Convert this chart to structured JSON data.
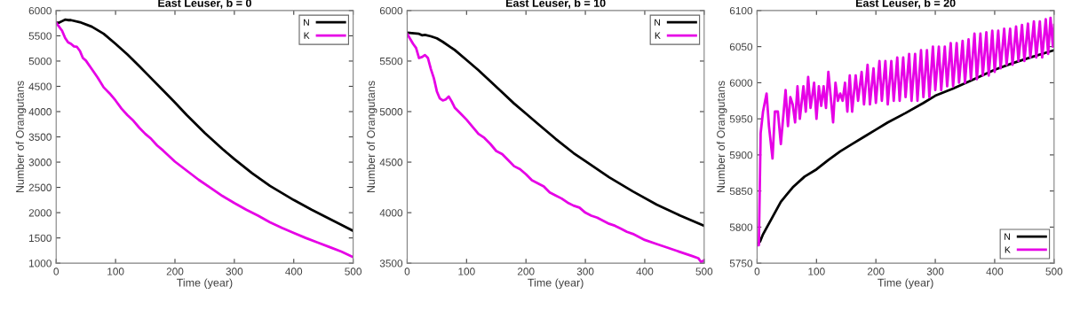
{
  "chart_data": [
    {
      "type": "line",
      "title": "East Leuser, b = 0",
      "xlabel": "Time (year)",
      "ylabel": "Number of Orangutans",
      "xlim": [
        0,
        500
      ],
      "ylim": [
        1000,
        6000
      ],
      "xticks": [
        0,
        100,
        200,
        300,
        400,
        500
      ],
      "yticks": [
        1000,
        1500,
        2000,
        2500,
        3000,
        3500,
        4000,
        4500,
        5000,
        5500,
        6000
      ],
      "grid": false,
      "legend": "top right",
      "series": [
        {
          "name": "N",
          "color": "#000000",
          "x": [
            0,
            5,
            10,
            15,
            20,
            25,
            40,
            60,
            80,
            100,
            120,
            140,
            160,
            180,
            200,
            220,
            250,
            280,
            300,
            330,
            360,
            400,
            430,
            460,
            500
          ],
          "values": [
            5760,
            5760,
            5790,
            5820,
            5810,
            5810,
            5770,
            5680,
            5540,
            5340,
            5130,
            4900,
            4660,
            4420,
            4180,
            3930,
            3580,
            3260,
            3060,
            2780,
            2530,
            2250,
            2060,
            1880,
            1640
          ]
        },
        {
          "name": "K",
          "color": "#e600e6",
          "x": [
            0,
            10,
            15,
            20,
            25,
            30,
            35,
            40,
            45,
            50,
            60,
            70,
            80,
            90,
            100,
            110,
            120,
            130,
            140,
            150,
            160,
            170,
            180,
            190,
            200,
            220,
            240,
            260,
            280,
            300,
            320,
            340,
            360,
            380,
            400,
            420,
            440,
            460,
            480,
            500
          ],
          "values": [
            5760,
            5600,
            5460,
            5370,
            5340,
            5290,
            5280,
            5200,
            5060,
            5010,
            4840,
            4670,
            4480,
            4360,
            4220,
            4060,
            3930,
            3820,
            3680,
            3560,
            3460,
            3330,
            3230,
            3120,
            3010,
            2830,
            2650,
            2490,
            2330,
            2190,
            2060,
            1940,
            1810,
            1700,
            1600,
            1500,
            1410,
            1320,
            1230,
            1120
          ]
        }
      ]
    },
    {
      "type": "line",
      "title": "East Leuser, b = 10",
      "xlabel": "Time (year)",
      "ylabel": "Number of Orangutans",
      "xlim": [
        0,
        500
      ],
      "ylim": [
        3500,
        6000
      ],
      "xticks": [
        0,
        100,
        200,
        300,
        400,
        500
      ],
      "yticks": [
        3500,
        4000,
        4500,
        5000,
        5500,
        6000
      ],
      "grid": false,
      "legend": "top right",
      "series": [
        {
          "name": "N",
          "color": "#000000",
          "x": [
            0,
            20,
            25,
            30,
            40,
            50,
            60,
            80,
            100,
            120,
            140,
            160,
            180,
            200,
            220,
            250,
            280,
            300,
            340,
            380,
            420,
            460,
            500
          ],
          "values": [
            5780,
            5770,
            5755,
            5760,
            5745,
            5725,
            5690,
            5610,
            5510,
            5410,
            5300,
            5190,
            5080,
            4980,
            4880,
            4730,
            4590,
            4510,
            4350,
            4210,
            4080,
            3970,
            3870
          ]
        },
        {
          "name": "K",
          "color": "#e600e6",
          "x": [
            0,
            10,
            15,
            20,
            25,
            30,
            35,
            40,
            45,
            50,
            55,
            60,
            65,
            70,
            75,
            80,
            90,
            100,
            110,
            120,
            130,
            140,
            150,
            160,
            170,
            180,
            190,
            200,
            210,
            220,
            230,
            240,
            250,
            260,
            270,
            280,
            290,
            300,
            310,
            320,
            330,
            340,
            350,
            360,
            370,
            380,
            390,
            400,
            420,
            440,
            460,
            480,
            490,
            495,
            500
          ],
          "values": [
            5770,
            5670,
            5630,
            5530,
            5540,
            5560,
            5530,
            5420,
            5330,
            5200,
            5130,
            5110,
            5120,
            5150,
            5100,
            5040,
            4980,
            4920,
            4850,
            4780,
            4740,
            4680,
            4610,
            4580,
            4520,
            4460,
            4430,
            4380,
            4320,
            4290,
            4260,
            4200,
            4170,
            4140,
            4100,
            4070,
            4050,
            4000,
            3970,
            3950,
            3920,
            3890,
            3870,
            3840,
            3810,
            3790,
            3760,
            3730,
            3690,
            3650,
            3610,
            3570,
            3550,
            3510,
            3530
          ]
        }
      ]
    },
    {
      "type": "line",
      "title": "East Leuser, b = 20",
      "xlabel": "Time (year)",
      "ylabel": "Number of Orangutans",
      "xlim": [
        0,
        500
      ],
      "ylim": [
        5750,
        6100
      ],
      "xticks": [
        0,
        100,
        200,
        300,
        400,
        500
      ],
      "yticks": [
        5750,
        5800,
        5850,
        5900,
        5950,
        6000,
        6050,
        6100
      ],
      "grid": false,
      "legend": "bottom right",
      "series": [
        {
          "name": "N",
          "color": "#000000",
          "x": [
            0,
            5,
            10,
            20,
            30,
            40,
            50,
            60,
            80,
            100,
            120,
            140,
            160,
            180,
            200,
            220,
            250,
            280,
            300,
            330,
            360,
            400,
            430,
            460,
            500
          ],
          "values": [
            5775,
            5780,
            5790,
            5805,
            5820,
            5835,
            5845,
            5855,
            5870,
            5880,
            5893,
            5905,
            5915,
            5925,
            5935,
            5945,
            5958,
            5972,
            5982,
            5992,
            6003,
            6018,
            6027,
            6035,
            6045
          ]
        },
        {
          "name": "K",
          "color": "#e600e6",
          "x": [
            0,
            3,
            6,
            10,
            16,
            20,
            26,
            30,
            35,
            40,
            48,
            52,
            56,
            60,
            64,
            68,
            72,
            78,
            82,
            86,
            90,
            96,
            100,
            104,
            108,
            112,
            116,
            120,
            124,
            128,
            132,
            136,
            140,
            144,
            148,
            152,
            156,
            160,
            166,
            170,
            176,
            180,
            186,
            190,
            196,
            200,
            206,
            210,
            216,
            220,
            226,
            230,
            236,
            240,
            246,
            250,
            256,
            260,
            266,
            270,
            276,
            280,
            286,
            290,
            296,
            300,
            306,
            310,
            316,
            320,
            326,
            330,
            336,
            340,
            346,
            350,
            356,
            360,
            366,
            370,
            376,
            380,
            386,
            390,
            396,
            400,
            406,
            410,
            416,
            420,
            426,
            430,
            436,
            440,
            446,
            450,
            456,
            460,
            466,
            470,
            476,
            480,
            486,
            490,
            494,
            498,
            500
          ],
          "values": [
            5775,
            5775,
            5930,
            5960,
            5985,
            5940,
            5895,
            5960,
            5960,
            5915,
            5990,
            5940,
            5980,
            5970,
            5945,
            5995,
            5950,
            5995,
            5960,
            6008,
            5965,
            6000,
            5950,
            5995,
            5968,
            5995,
            5965,
            6015,
            5980,
            5945,
            6000,
            5975,
            5985,
            5975,
            6000,
            5960,
            6010,
            5960,
            6010,
            5975,
            6015,
            5970,
            6025,
            5970,
            6020,
            5972,
            6030,
            5975,
            6030,
            5970,
            6030,
            5975,
            6035,
            5975,
            6035,
            5980,
            6040,
            5975,
            6040,
            5975,
            6045,
            5980,
            6045,
            5980,
            6050,
            5990,
            6050,
            5990,
            6050,
            5995,
            6055,
            5995,
            6055,
            6000,
            6058,
            6000,
            6060,
            6005,
            6068,
            6005,
            6068,
            6010,
            6070,
            6010,
            6072,
            6015,
            6072,
            6020,
            6075,
            6025,
            6075,
            6025,
            6078,
            6030,
            6080,
            6030,
            6082,
            6035,
            6085,
            6035,
            6085,
            6035,
            6088,
            6040,
            6090,
            6050,
            6080
          ]
        }
      ]
    }
  ]
}
